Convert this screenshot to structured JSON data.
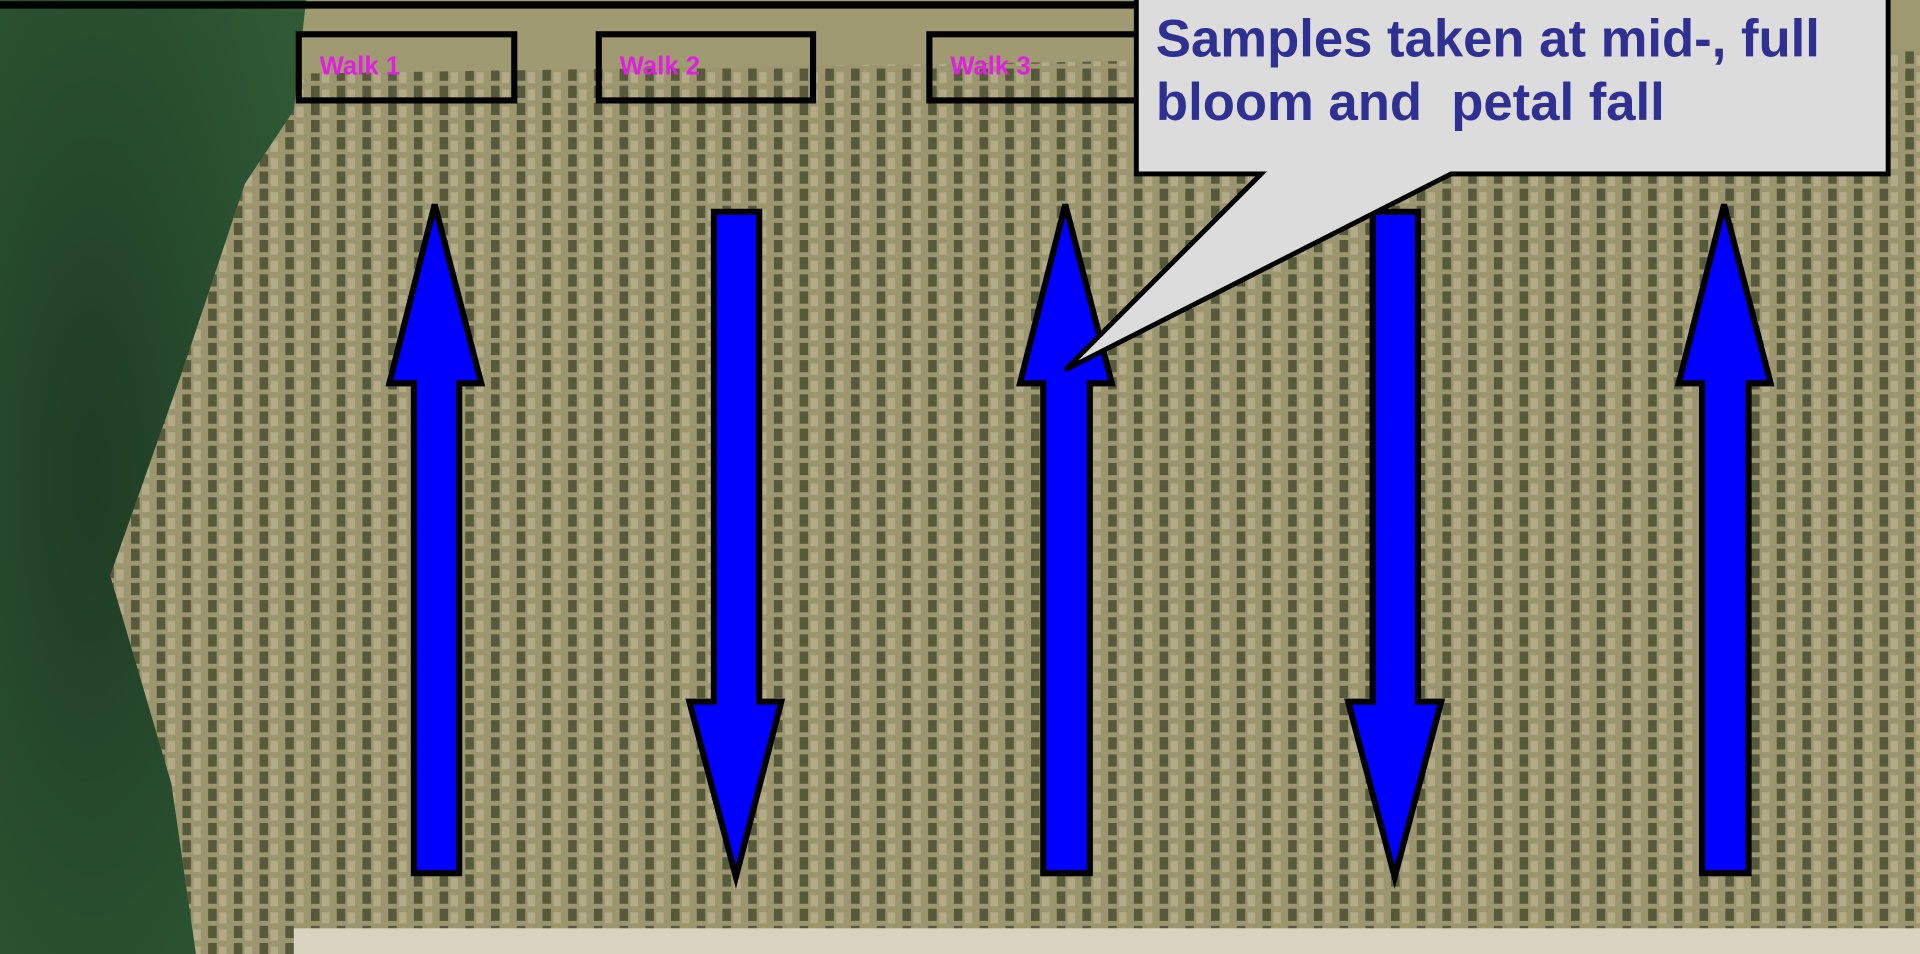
{
  "walks": [
    {
      "label": "Walk 1"
    },
    {
      "label": "Walk 2"
    },
    {
      "label": "Walk 3"
    }
  ],
  "callout": {
    "lines": [
      "Samples taken at mid-, full",
      "bloom and  petal fall"
    ]
  }
}
